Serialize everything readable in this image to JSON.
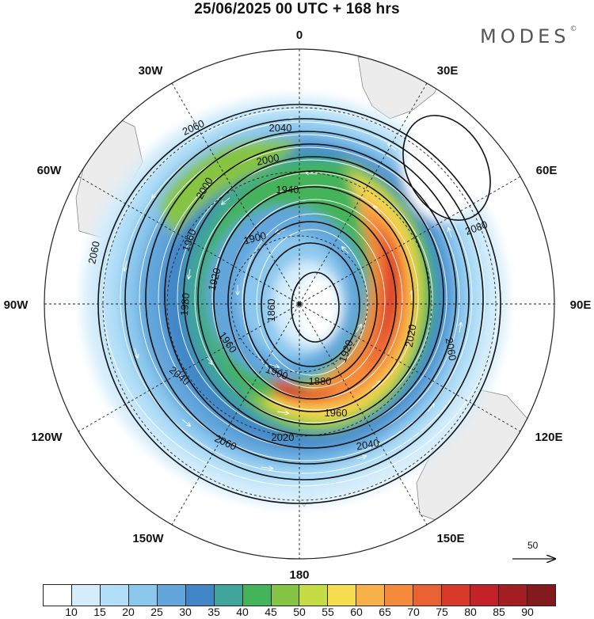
{
  "title": "25/06/2025  00 UTC  + 168 hrs",
  "brand": "MODES",
  "brand_mark": "©",
  "longitude_labels": [
    {
      "id": "lon-0",
      "text": "0"
    },
    {
      "id": "lon-30e",
      "text": "30E"
    },
    {
      "id": "lon-60e",
      "text": "60E"
    },
    {
      "id": "lon-90e",
      "text": "90E"
    },
    {
      "id": "lon-120e",
      "text": "120E"
    },
    {
      "id": "lon-150e",
      "text": "150E"
    },
    {
      "id": "lon-180",
      "text": "180"
    },
    {
      "id": "lon-150w",
      "text": "150W"
    },
    {
      "id": "lon-120w",
      "text": "120W"
    },
    {
      "id": "lon-90w",
      "text": "90W"
    },
    {
      "id": "lon-60w",
      "text": "60W"
    },
    {
      "id": "lon-30w",
      "text": "30W"
    }
  ],
  "contour_labels": [
    "2060",
    "2040",
    "2000",
    "1940",
    "1900",
    "1920",
    "1860",
    "1880",
    "1960",
    "2020",
    "2080",
    "2060",
    "2060",
    "2040",
    "2020",
    "1900",
    "1960",
    "2060",
    "2040",
    "2000",
    "1980",
    "1920",
    "1960"
  ],
  "scale_arrow": {
    "label": "50"
  },
  "colorbar": {
    "labels": [
      "10",
      "15",
      "20",
      "25",
      "30",
      "35",
      "40",
      "45",
      "50",
      "55",
      "60",
      "65",
      "70",
      "75",
      "80",
      "85",
      "90"
    ],
    "colors": [
      "#ffffff",
      "#d5edfb",
      "#b2dff7",
      "#8cc8ee",
      "#62a6dc",
      "#4286c8",
      "#3fa49a",
      "#45b35a",
      "#86c443",
      "#c6dc45",
      "#f6dc50",
      "#f8b14a",
      "#f48a3b",
      "#ea6232",
      "#d8392b",
      "#c22228",
      "#a31e22",
      "#841a1e"
    ]
  }
}
